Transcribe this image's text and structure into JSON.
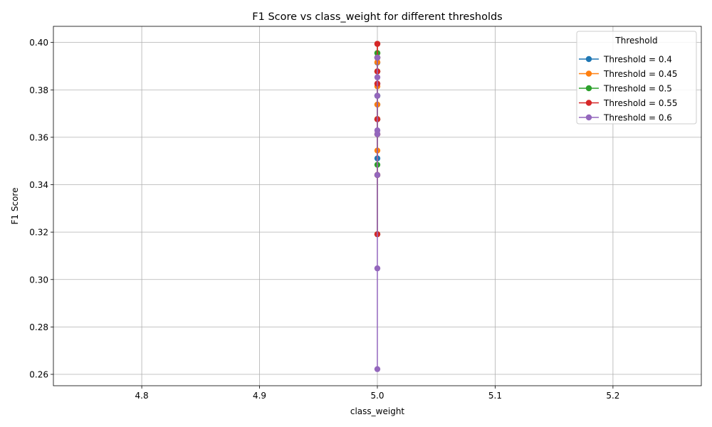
{
  "chart_data": {
    "type": "line",
    "title": "F1 Score vs class_weight for different thresholds",
    "xlabel": "class_weight",
    "ylabel": "F1 Score",
    "xlim": [
      4.725,
      5.275
    ],
    "ylim": [
      0.2552,
      0.4068
    ],
    "xticks": [
      {
        "value": 4.8,
        "label": "4.8"
      },
      {
        "value": 4.9,
        "label": "4.9"
      },
      {
        "value": 5.0,
        "label": "5.0"
      },
      {
        "value": 5.1,
        "label": "5.1"
      },
      {
        "value": 5.2,
        "label": "5.2"
      }
    ],
    "yticks": [
      {
        "value": 0.26,
        "label": "0.26"
      },
      {
        "value": 0.28,
        "label": "0.28"
      },
      {
        "value": 0.3,
        "label": "0.30"
      },
      {
        "value": 0.32,
        "label": "0.32"
      },
      {
        "value": 0.34,
        "label": "0.34"
      },
      {
        "value": 0.36,
        "label": "0.36"
      },
      {
        "value": 0.38,
        "label": "0.38"
      },
      {
        "value": 0.4,
        "label": "0.40"
      }
    ],
    "grid": true,
    "legend": {
      "title": "Threshold",
      "position": "top-right"
    },
    "series": [
      {
        "name": "Threshold = 0.4",
        "color": "#1f77b4",
        "x": [
          5,
          5,
          5,
          5,
          5,
          5,
          5,
          5,
          5,
          5
        ],
        "y": [
          0.3511,
          0.3676,
          0.3738,
          0.3775,
          0.3826,
          0.3878,
          0.3915,
          0.3936,
          0.3955,
          0.3994
        ]
      },
      {
        "name": "Threshold = 0.45",
        "color": "#ff7f0e",
        "x": [
          5,
          5,
          5,
          5,
          5,
          5,
          5,
          5,
          5,
          5
        ],
        "y": [
          0.3441,
          0.3544,
          0.3613,
          0.3677,
          0.3738,
          0.3815,
          0.3878,
          0.3917,
          0.3955,
          0.3994
        ]
      },
      {
        "name": "Threshold = 0.5",
        "color": "#2ca02c",
        "x": [
          5,
          5,
          5,
          5,
          5,
          5,
          5,
          5,
          5
        ],
        "y": [
          0.3191,
          0.3441,
          0.3484,
          0.3613,
          0.3676,
          0.3775,
          0.3878,
          0.3936,
          0.3955
        ]
      },
      {
        "name": "Threshold = 0.55",
        "color": "#d62728",
        "x": [
          5,
          5,
          5,
          5,
          5,
          5,
          5,
          5
        ],
        "y": [
          0.3191,
          0.3441,
          0.3613,
          0.3676,
          0.3826,
          0.3878,
          0.3936,
          0.3994
        ]
      },
      {
        "name": "Threshold = 0.6",
        "color": "#9467bd",
        "x": [
          5,
          5,
          5,
          5,
          5,
          5,
          5,
          5
        ],
        "y": [
          0.2622,
          0.3047,
          0.3441,
          0.3613,
          0.3629,
          0.3775,
          0.3853,
          0.3936
        ]
      }
    ]
  }
}
